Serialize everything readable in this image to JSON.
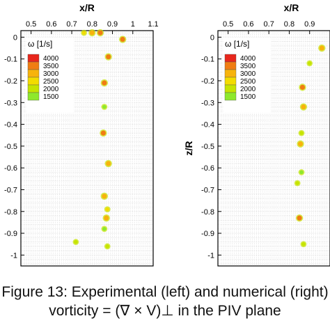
{
  "caption": {
    "line1": "Figure 13: Experimental (left) and numerical (right)",
    "line2": "vorticity = (∇ × V)⊥ in the PIV plane"
  },
  "chart_data": [
    {
      "type": "scatter",
      "xlabel": "x/R",
      "ylabel": "",
      "xlim": [
        0.45,
        1.1
      ],
      "ylim": [
        -1.05,
        0.03
      ],
      "x_ticks": [
        0.5,
        0.6,
        0.7,
        0.8,
        0.9,
        1,
        1.1
      ],
      "x_tick_labels": [
        "0.5",
        "0.6",
        "0.7",
        "0.8",
        "0.9",
        "1",
        "1.1"
      ],
      "y_ticks": [
        0,
        -0.1,
        -0.2,
        -0.3,
        -0.4,
        -0.5,
        -0.6,
        -0.7,
        -0.8,
        -0.9,
        -1
      ],
      "y_tick_labels": [
        "0",
        "-0.1",
        "-0.2",
        "-0.3",
        "-0.4",
        "-0.5",
        "-0.6",
        "-0.7",
        "-0.8",
        "-0.9",
        "-1"
      ],
      "grid": true,
      "legend": {
        "title": "ω [1/s]",
        "levels": [
          4000,
          3500,
          3000,
          2500,
          2000,
          1500
        ],
        "colors": [
          "#e8261c",
          "#f07d12",
          "#f7b30c",
          "#f3dc00",
          "#c6e400",
          "#8ee82c"
        ],
        "position": "top-left"
      },
      "points": [
        {
          "x": 0.95,
          "y": -0.01,
          "w": 3600
        },
        {
          "x": 0.88,
          "y": -0.09,
          "w": 3500
        },
        {
          "x": 0.86,
          "y": -0.21,
          "w": 3600
        },
        {
          "x": 0.86,
          "y": -0.32,
          "w": 1700
        },
        {
          "x": 0.855,
          "y": -0.44,
          "w": 3500
        },
        {
          "x": 0.88,
          "y": -0.58,
          "w": 3400
        },
        {
          "x": 0.86,
          "y": -0.73,
          "w": 3000
        },
        {
          "x": 0.875,
          "y": -0.79,
          "w": 2800
        },
        {
          "x": 0.87,
          "y": -0.83,
          "w": 3000
        },
        {
          "x": 0.86,
          "y": -0.88,
          "w": 1800
        },
        {
          "x": 0.875,
          "y": -0.96,
          "w": 2000
        },
        {
          "x": 0.72,
          "y": -0.94,
          "w": 2200
        },
        {
          "x": 0.8,
          "y": 0.02,
          "w": 3000
        },
        {
          "x": 0.76,
          "y": 0.02,
          "w": 2500
        },
        {
          "x": 0.84,
          "y": 0.02,
          "w": 3500
        }
      ]
    },
    {
      "type": "scatter",
      "xlabel": "x/R",
      "ylabel": "z/R",
      "xlim": [
        0.45,
        1.0
      ],
      "ylim": [
        -1.05,
        0.03
      ],
      "x_ticks": [
        0.5,
        0.6,
        0.7,
        0.8,
        0.9
      ],
      "x_tick_labels": [
        "0.5",
        "0.6",
        "0.7",
        "0.8",
        "0.9"
      ],
      "y_ticks": [
        0,
        -0.1,
        -0.2,
        -0.3,
        -0.4,
        -0.5,
        -0.6,
        -0.7,
        -0.8,
        -0.9,
        -1
      ],
      "y_tick_labels": [
        "0",
        "-0.1",
        "-0.2",
        "-0.3",
        "-0.4",
        "-0.5",
        "-0.6",
        "-0.7",
        "-0.8",
        "-0.9",
        "-1"
      ],
      "grid": true,
      "legend": {
        "title": "ω [1/s]",
        "levels": [
          4000,
          3500,
          3000,
          2500,
          2000,
          1500
        ],
        "colors": [
          "#e8261c",
          "#f07d12",
          "#f7b30c",
          "#f3dc00",
          "#c6e400",
          "#8ee82c"
        ],
        "position": "top-left"
      },
      "points": [
        {
          "x": 0.96,
          "y": -0.05,
          "w": 3400
        },
        {
          "x": 0.9,
          "y": -0.12,
          "w": 2200
        },
        {
          "x": 0.865,
          "y": -0.23,
          "w": 3800
        },
        {
          "x": 0.87,
          "y": -0.32,
          "w": 3400
        },
        {
          "x": 0.86,
          "y": -0.44,
          "w": 2200
        },
        {
          "x": 0.855,
          "y": -0.49,
          "w": 3000
        },
        {
          "x": 0.86,
          "y": -0.62,
          "w": 1700
        },
        {
          "x": 0.84,
          "y": -0.67,
          "w": 2000
        },
        {
          "x": 0.85,
          "y": -0.83,
          "w": 3500
        },
        {
          "x": 0.87,
          "y": -0.95,
          "w": 2200
        }
      ]
    }
  ]
}
